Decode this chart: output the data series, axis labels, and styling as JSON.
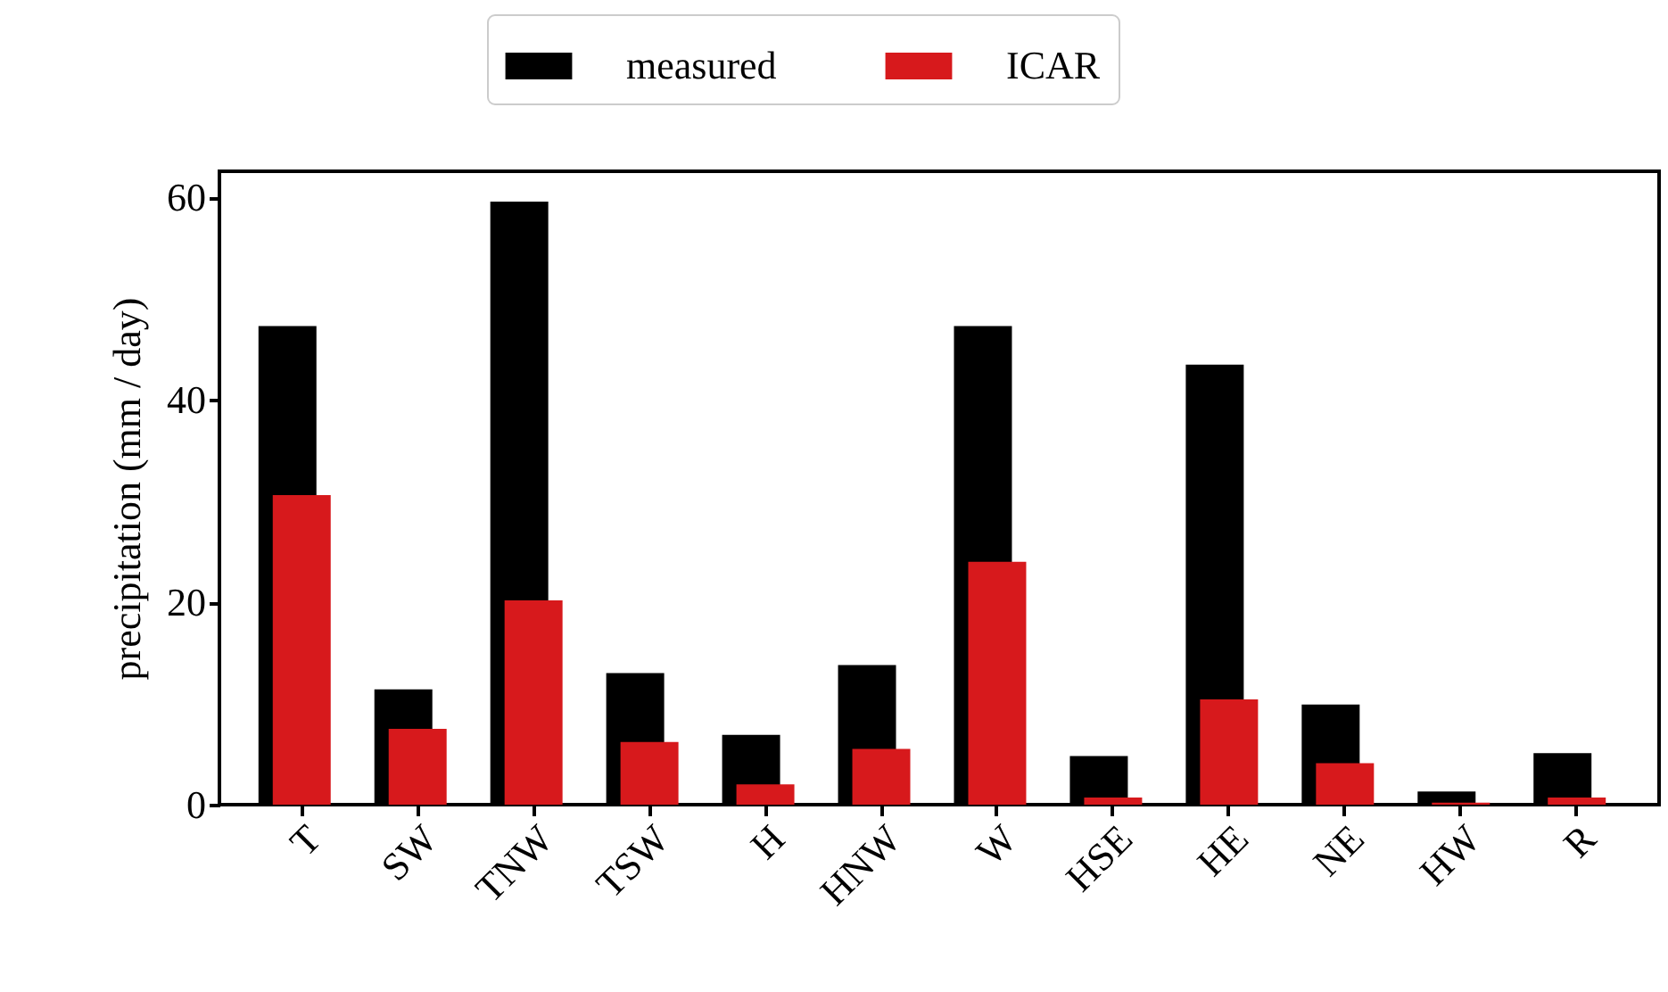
{
  "chart_data": {
    "type": "bar",
    "ylabel": "precipitation (mm / day)",
    "categories": [
      "T",
      "SW",
      "TNW",
      "TSW",
      "H",
      "HNW",
      "W",
      "HSE",
      "HE",
      "NE",
      "HW",
      "R"
    ],
    "series": [
      {
        "name": "measured",
        "color": "#000000",
        "values": [
          47.3,
          11.4,
          59.6,
          13.0,
          6.9,
          13.8,
          47.3,
          4.8,
          43.5,
          9.9,
          1.3,
          5.1
        ]
      },
      {
        "name": "ICAR",
        "color": "#d7191c",
        "values": [
          30.6,
          7.5,
          20.2,
          6.2,
          2.0,
          5.5,
          24.0,
          0.7,
          10.4,
          4.1,
          0.2,
          0.7
        ]
      }
    ],
    "ylim": [
      0,
      62.6
    ],
    "yticks": [
      0,
      20,
      40,
      60
    ],
    "legend": "top"
  }
}
